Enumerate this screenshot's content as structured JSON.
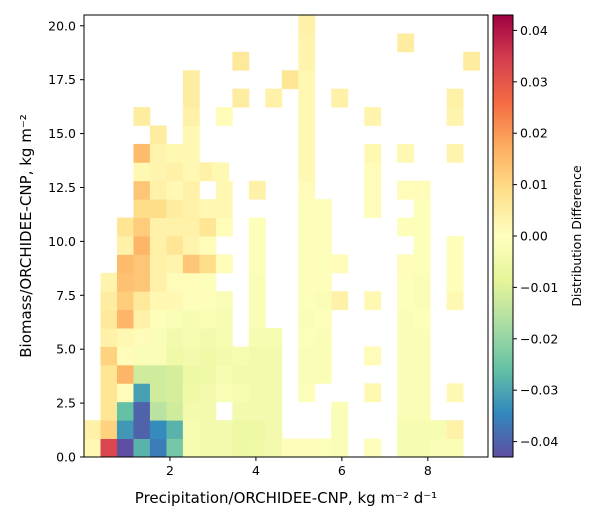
{
  "chart_data": {
    "type": "heatmap",
    "xlabel": "Precipitation/ORCHIDEE-CNP,  kg m⁻² d⁻¹",
    "ylabel": "Biomass/ORCHIDEE-CNP,  kg m⁻²",
    "colorbar_label": "Distribution Difference",
    "xlim": [
      0.0,
      9.4
    ],
    "ylim": [
      0.0,
      20.5
    ],
    "vlim": [
      -0.043,
      0.043
    ],
    "colormap": "Spectral_r",
    "xticks": [
      2,
      4,
      6,
      8
    ],
    "xtick_labels": [
      "2",
      "4",
      "6",
      "8"
    ],
    "yticks": [
      0.0,
      2.5,
      5.0,
      7.5,
      10.0,
      12.5,
      15.0,
      17.5,
      20.0
    ],
    "ytick_labels": [
      "0.0",
      "2.5",
      "5.0",
      "7.5",
      "10.0",
      "12.5",
      "15.0",
      "17.5",
      "20.0"
    ],
    "cbar_ticks": [
      -0.04,
      -0.03,
      -0.02,
      -0.01,
      0.0,
      0.01,
      0.02,
      0.03,
      0.04
    ],
    "cbar_tick_labels": [
      "−0.04",
      "−0.03",
      "−0.02",
      "−0.01",
      "0.00",
      "0.01",
      "0.02",
      "0.03",
      "0.04"
    ],
    "bin_width": {
      "x": 0.3836,
      "y": 0.8542
    },
    "cells": [
      [
        0.0,
        0.0,
        0.002
      ],
      [
        0.384,
        0.0,
        0.033
      ],
      [
        0.767,
        0.0,
        -0.043
      ],
      [
        1.151,
        0.0,
        -0.028
      ],
      [
        1.534,
        0.0,
        -0.036
      ],
      [
        1.918,
        0.0,
        -0.024
      ],
      [
        2.301,
        0.0,
        -0.003
      ],
      [
        2.685,
        0.0,
        -0.004
      ],
      [
        3.068,
        0.0,
        -0.004
      ],
      [
        3.452,
        0.0,
        -0.006
      ],
      [
        3.836,
        0.0,
        -0.005
      ],
      [
        4.219,
        0.0,
        -0.004
      ],
      [
        4.603,
        0.0,
        -0.001
      ],
      [
        4.986,
        0.0,
        -0.001
      ],
      [
        5.37,
        0.0,
        -0.001
      ],
      [
        5.753,
        0.0,
        -0.002
      ],
      [
        6.521,
        0.0,
        -0.001
      ],
      [
        7.288,
        0.0,
        -0.003
      ],
      [
        7.671,
        0.0,
        -0.003
      ],
      [
        8.055,
        0.0,
        -0.002
      ],
      [
        8.438,
        0.0,
        -0.002
      ],
      [
        0.0,
        0.854,
        0.004
      ],
      [
        0.384,
        0.854,
        0.011
      ],
      [
        0.767,
        0.854,
        -0.032
      ],
      [
        1.151,
        0.854,
        -0.04
      ],
      [
        1.534,
        0.854,
        -0.034
      ],
      [
        1.918,
        0.854,
        -0.028
      ],
      [
        2.301,
        0.854,
        -0.003
      ],
      [
        2.685,
        0.854,
        -0.004
      ],
      [
        3.068,
        0.854,
        -0.004
      ],
      [
        3.452,
        0.854,
        -0.006
      ],
      [
        3.836,
        0.854,
        -0.006
      ],
      [
        4.219,
        0.854,
        -0.004
      ],
      [
        5.753,
        0.854,
        -0.002
      ],
      [
        7.288,
        0.854,
        -0.003
      ],
      [
        7.671,
        0.854,
        -0.003
      ],
      [
        8.055,
        0.854,
        -0.003
      ],
      [
        8.438,
        0.854,
        0.004
      ],
      [
        0.384,
        1.708,
        0.007
      ],
      [
        0.767,
        1.708,
        -0.026
      ],
      [
        1.151,
        1.708,
        -0.04
      ],
      [
        1.534,
        1.708,
        -0.015
      ],
      [
        1.918,
        1.708,
        -0.012
      ],
      [
        2.301,
        1.708,
        -0.004
      ],
      [
        2.685,
        1.708,
        -0.004
      ],
      [
        3.452,
        1.708,
        -0.004
      ],
      [
        3.836,
        1.708,
        -0.004
      ],
      [
        4.219,
        1.708,
        -0.004
      ],
      [
        5.753,
        1.708,
        -0.002
      ],
      [
        7.288,
        1.708,
        -0.002
      ],
      [
        7.671,
        1.708,
        -0.002
      ],
      [
        0.384,
        2.563,
        0.007
      ],
      [
        0.767,
        2.563,
        0.001
      ],
      [
        1.151,
        2.563,
        -0.031
      ],
      [
        1.534,
        2.563,
        -0.012
      ],
      [
        1.918,
        2.563,
        -0.011
      ],
      [
        2.301,
        2.563,
        -0.005
      ],
      [
        2.685,
        2.563,
        -0.004
      ],
      [
        3.068,
        2.563,
        -0.002
      ],
      [
        3.452,
        2.563,
        -0.003
      ],
      [
        3.836,
        2.563,
        -0.004
      ],
      [
        4.219,
        2.563,
        -0.004
      ],
      [
        4.986,
        2.563,
        -0.001
      ],
      [
        6.521,
        2.563,
        0.002
      ],
      [
        7.288,
        2.563,
        -0.002
      ],
      [
        7.671,
        2.563,
        -0.002
      ],
      [
        8.438,
        2.563,
        0.002
      ],
      [
        0.384,
        3.417,
        0.007
      ],
      [
        0.767,
        3.417,
        0.016
      ],
      [
        1.151,
        3.417,
        -0.012
      ],
      [
        1.534,
        3.417,
        -0.012
      ],
      [
        1.918,
        3.417,
        -0.011
      ],
      [
        2.301,
        3.417,
        -0.006
      ],
      [
        2.685,
        3.417,
        -0.005
      ],
      [
        3.068,
        3.417,
        -0.003
      ],
      [
        3.452,
        3.417,
        -0.004
      ],
      [
        3.836,
        3.417,
        -0.004
      ],
      [
        4.219,
        3.417,
        -0.004
      ],
      [
        4.986,
        3.417,
        -0.002
      ],
      [
        5.37,
        3.417,
        -0.002
      ],
      [
        7.288,
        3.417,
        -0.002
      ],
      [
        7.671,
        3.417,
        -0.002
      ],
      [
        0.384,
        4.271,
        0.011
      ],
      [
        0.767,
        4.271,
        0.001
      ],
      [
        1.151,
        4.271,
        -0.002
      ],
      [
        1.534,
        4.271,
        -0.002
      ],
      [
        1.918,
        4.271,
        -0.005
      ],
      [
        2.301,
        4.271,
        -0.004
      ],
      [
        2.685,
        4.271,
        -0.005
      ],
      [
        3.068,
        4.271,
        -0.004
      ],
      [
        3.452,
        4.271,
        -0.003
      ],
      [
        3.836,
        4.271,
        -0.004
      ],
      [
        4.219,
        4.271,
        -0.004
      ],
      [
        4.986,
        4.271,
        -0.002
      ],
      [
        5.37,
        4.271,
        -0.002
      ],
      [
        6.521,
        4.271,
        0.001
      ],
      [
        7.288,
        4.271,
        -0.002
      ],
      [
        7.671,
        4.271,
        -0.002
      ],
      [
        0.384,
        5.125,
        0.004
      ],
      [
        0.767,
        5.125,
        0.002
      ],
      [
        1.151,
        5.125,
        0.001
      ],
      [
        1.534,
        5.125,
        -0.002
      ],
      [
        1.918,
        5.125,
        -0.004
      ],
      [
        2.301,
        5.125,
        -0.003
      ],
      [
        2.685,
        5.125,
        -0.004
      ],
      [
        3.068,
        5.125,
        -0.003
      ],
      [
        3.836,
        5.125,
        -0.003
      ],
      [
        4.219,
        5.125,
        -0.003
      ],
      [
        4.986,
        5.125,
        -0.001
      ],
      [
        5.37,
        5.125,
        -0.002
      ],
      [
        7.288,
        5.125,
        -0.002
      ],
      [
        7.671,
        5.125,
        -0.002
      ],
      [
        0.384,
        5.979,
        0.006
      ],
      [
        0.767,
        5.979,
        0.016
      ],
      [
        1.151,
        5.979,
        0.004
      ],
      [
        1.534,
        5.979,
        -0.001
      ],
      [
        1.918,
        5.979,
        -0.002
      ],
      [
        2.301,
        5.979,
        -0.003
      ],
      [
        2.685,
        5.979,
        -0.002
      ],
      [
        3.068,
        5.979,
        -0.003
      ],
      [
        3.836,
        5.979,
        -0.002
      ],
      [
        4.986,
        5.979,
        -0.002
      ],
      [
        5.37,
        5.979,
        -0.001
      ],
      [
        7.288,
        5.979,
        -0.002
      ],
      [
        7.671,
        5.979,
        -0.001
      ],
      [
        0.384,
        6.833,
        0.005
      ],
      [
        0.767,
        6.833,
        0.012
      ],
      [
        1.151,
        6.833,
        0.006
      ],
      [
        1.534,
        6.833,
        0.002
      ],
      [
        1.918,
        6.833,
        0.002
      ],
      [
        2.301,
        6.833,
        -0.001
      ],
      [
        2.685,
        6.833,
        -0.001
      ],
      [
        3.068,
        6.833,
        -0.002
      ],
      [
        3.836,
        6.833,
        -0.002
      ],
      [
        4.986,
        6.833,
        -0.001
      ],
      [
        5.37,
        6.833,
        -0.002
      ],
      [
        5.753,
        6.833,
        0.004
      ],
      [
        6.521,
        6.833,
        0.002
      ],
      [
        7.288,
        6.833,
        -0.001
      ],
      [
        7.671,
        6.833,
        -0.002
      ],
      [
        8.438,
        6.833,
        0.002
      ],
      [
        0.384,
        7.688,
        0.003
      ],
      [
        0.767,
        7.688,
        0.014
      ],
      [
        1.151,
        7.688,
        0.013
      ],
      [
        1.534,
        7.688,
        0.004
      ],
      [
        1.918,
        7.688,
        0.001
      ],
      [
        2.301,
        7.688,
        0.001
      ],
      [
        2.685,
        7.688,
        -0.001
      ],
      [
        3.836,
        7.688,
        -0.002
      ],
      [
        4.986,
        7.688,
        -0.001
      ],
      [
        5.37,
        7.688,
        -0.001
      ],
      [
        7.288,
        7.688,
        -0.001
      ],
      [
        7.671,
        7.688,
        -0.002
      ],
      [
        8.438,
        7.688,
        -0.001
      ],
      [
        0.767,
        8.542,
        0.015
      ],
      [
        1.151,
        8.542,
        0.013
      ],
      [
        1.534,
        8.542,
        0.004
      ],
      [
        1.918,
        8.542,
        0.003
      ],
      [
        2.301,
        8.542,
        0.013
      ],
      [
        2.685,
        8.542,
        0.009
      ],
      [
        3.068,
        8.542,
        0.001
      ],
      [
        3.836,
        8.542,
        -0.001
      ],
      [
        4.986,
        8.542,
        -0.001
      ],
      [
        5.37,
        8.542,
        -0.001
      ],
      [
        5.753,
        8.542,
        0.001
      ],
      [
        7.288,
        8.542,
        0.001
      ],
      [
        7.671,
        8.542,
        -0.001
      ],
      [
        8.438,
        8.542,
        -0.001
      ],
      [
        0.767,
        9.396,
        0.004
      ],
      [
        1.151,
        9.396,
        0.016
      ],
      [
        1.534,
        9.396,
        0.004
      ],
      [
        1.918,
        9.396,
        0.007
      ],
      [
        2.301,
        9.396,
        0.003
      ],
      [
        2.685,
        9.396,
        0.001
      ],
      [
        3.836,
        9.396,
        -0.001
      ],
      [
        4.986,
        9.396,
        -0.001
      ],
      [
        5.37,
        9.396,
        -0.001
      ],
      [
        7.671,
        9.396,
        -0.001
      ],
      [
        8.438,
        9.396,
        -0.001
      ],
      [
        0.767,
        10.25,
        0.007
      ],
      [
        1.151,
        10.25,
        0.012
      ],
      [
        1.534,
        10.25,
        0.004
      ],
      [
        1.918,
        10.25,
        0.004
      ],
      [
        2.301,
        10.25,
        0.004
      ],
      [
        2.685,
        10.25,
        0.007
      ],
      [
        3.068,
        10.25,
        0.001
      ],
      [
        3.836,
        10.25,
        -0.001
      ],
      [
        4.986,
        10.25,
        -0.001
      ],
      [
        5.37,
        10.25,
        -0.001
      ],
      [
        7.288,
        10.25,
        -0.001
      ],
      [
        7.671,
        10.25,
        -0.001
      ],
      [
        1.151,
        11.104,
        0.009
      ],
      [
        1.534,
        11.104,
        0.009
      ],
      [
        1.918,
        11.104,
        0.005
      ],
      [
        2.301,
        11.104,
        0.004
      ],
      [
        2.685,
        11.104,
        0.002
      ],
      [
        3.068,
        11.104,
        0.002
      ],
      [
        4.986,
        11.104,
        -0.001
      ],
      [
        5.37,
        11.104,
        -0.001
      ],
      [
        6.521,
        11.104,
        0.001
      ],
      [
        7.671,
        11.104,
        -0.001
      ],
      [
        1.151,
        11.958,
        0.013
      ],
      [
        1.534,
        11.958,
        0.004
      ],
      [
        1.918,
        11.958,
        0.002
      ],
      [
        2.301,
        11.958,
        0.004
      ],
      [
        3.068,
        11.958,
        0.002
      ],
      [
        3.836,
        11.958,
        0.004
      ],
      [
        4.986,
        11.958,
        0.001
      ],
      [
        6.521,
        11.958,
        0.001
      ],
      [
        7.288,
        11.958,
        0.001
      ],
      [
        7.671,
        11.958,
        0.001
      ],
      [
        1.151,
        12.813,
        0.002
      ],
      [
        1.534,
        12.813,
        0.003
      ],
      [
        1.918,
        12.813,
        0.004
      ],
      [
        2.301,
        12.813,
        0.002
      ],
      [
        2.685,
        12.813,
        0.004
      ],
      [
        2.985,
        12.813,
        0.002
      ],
      [
        4.986,
        12.813,
        0.002
      ],
      [
        6.521,
        12.813,
        0.001
      ],
      [
        1.151,
        13.667,
        0.015
      ],
      [
        1.534,
        13.667,
        0.003
      ],
      [
        1.918,
        13.667,
        0.002
      ],
      [
        2.301,
        13.667,
        0.002
      ],
      [
        4.986,
        13.667,
        0.002
      ],
      [
        6.521,
        13.667,
        0.002
      ],
      [
        7.288,
        13.667,
        0.002
      ],
      [
        8.438,
        13.667,
        0.003
      ],
      [
        1.534,
        14.521,
        0.005
      ],
      [
        2.301,
        14.521,
        0.002
      ],
      [
        4.986,
        14.521,
        0.002
      ],
      [
        1.151,
        15.375,
        0.005
      ],
      [
        2.301,
        15.375,
        0.004
      ],
      [
        3.068,
        15.375,
        0.001
      ],
      [
        4.986,
        15.375,
        0.002
      ],
      [
        6.521,
        15.375,
        0.003
      ],
      [
        8.438,
        15.375,
        0.003
      ],
      [
        2.301,
        16.229,
        0.005
      ],
      [
        3.452,
        16.229,
        0.005
      ],
      [
        4.219,
        16.229,
        0.004
      ],
      [
        4.986,
        16.229,
        0.002
      ],
      [
        5.753,
        16.229,
        0.004
      ],
      [
        8.438,
        16.229,
        0.004
      ],
      [
        2.301,
        17.083,
        0.005
      ],
      [
        4.603,
        17.083,
        0.007
      ],
      [
        4.986,
        17.083,
        0.002
      ],
      [
        3.452,
        17.938,
        0.006
      ],
      [
        4.986,
        17.938,
        0.003
      ],
      [
        8.822,
        17.938,
        0.005
      ],
      [
        4.986,
        18.792,
        0.003
      ],
      [
        7.288,
        18.792,
        0.005
      ],
      [
        4.986,
        19.646,
        0.004
      ]
    ]
  }
}
